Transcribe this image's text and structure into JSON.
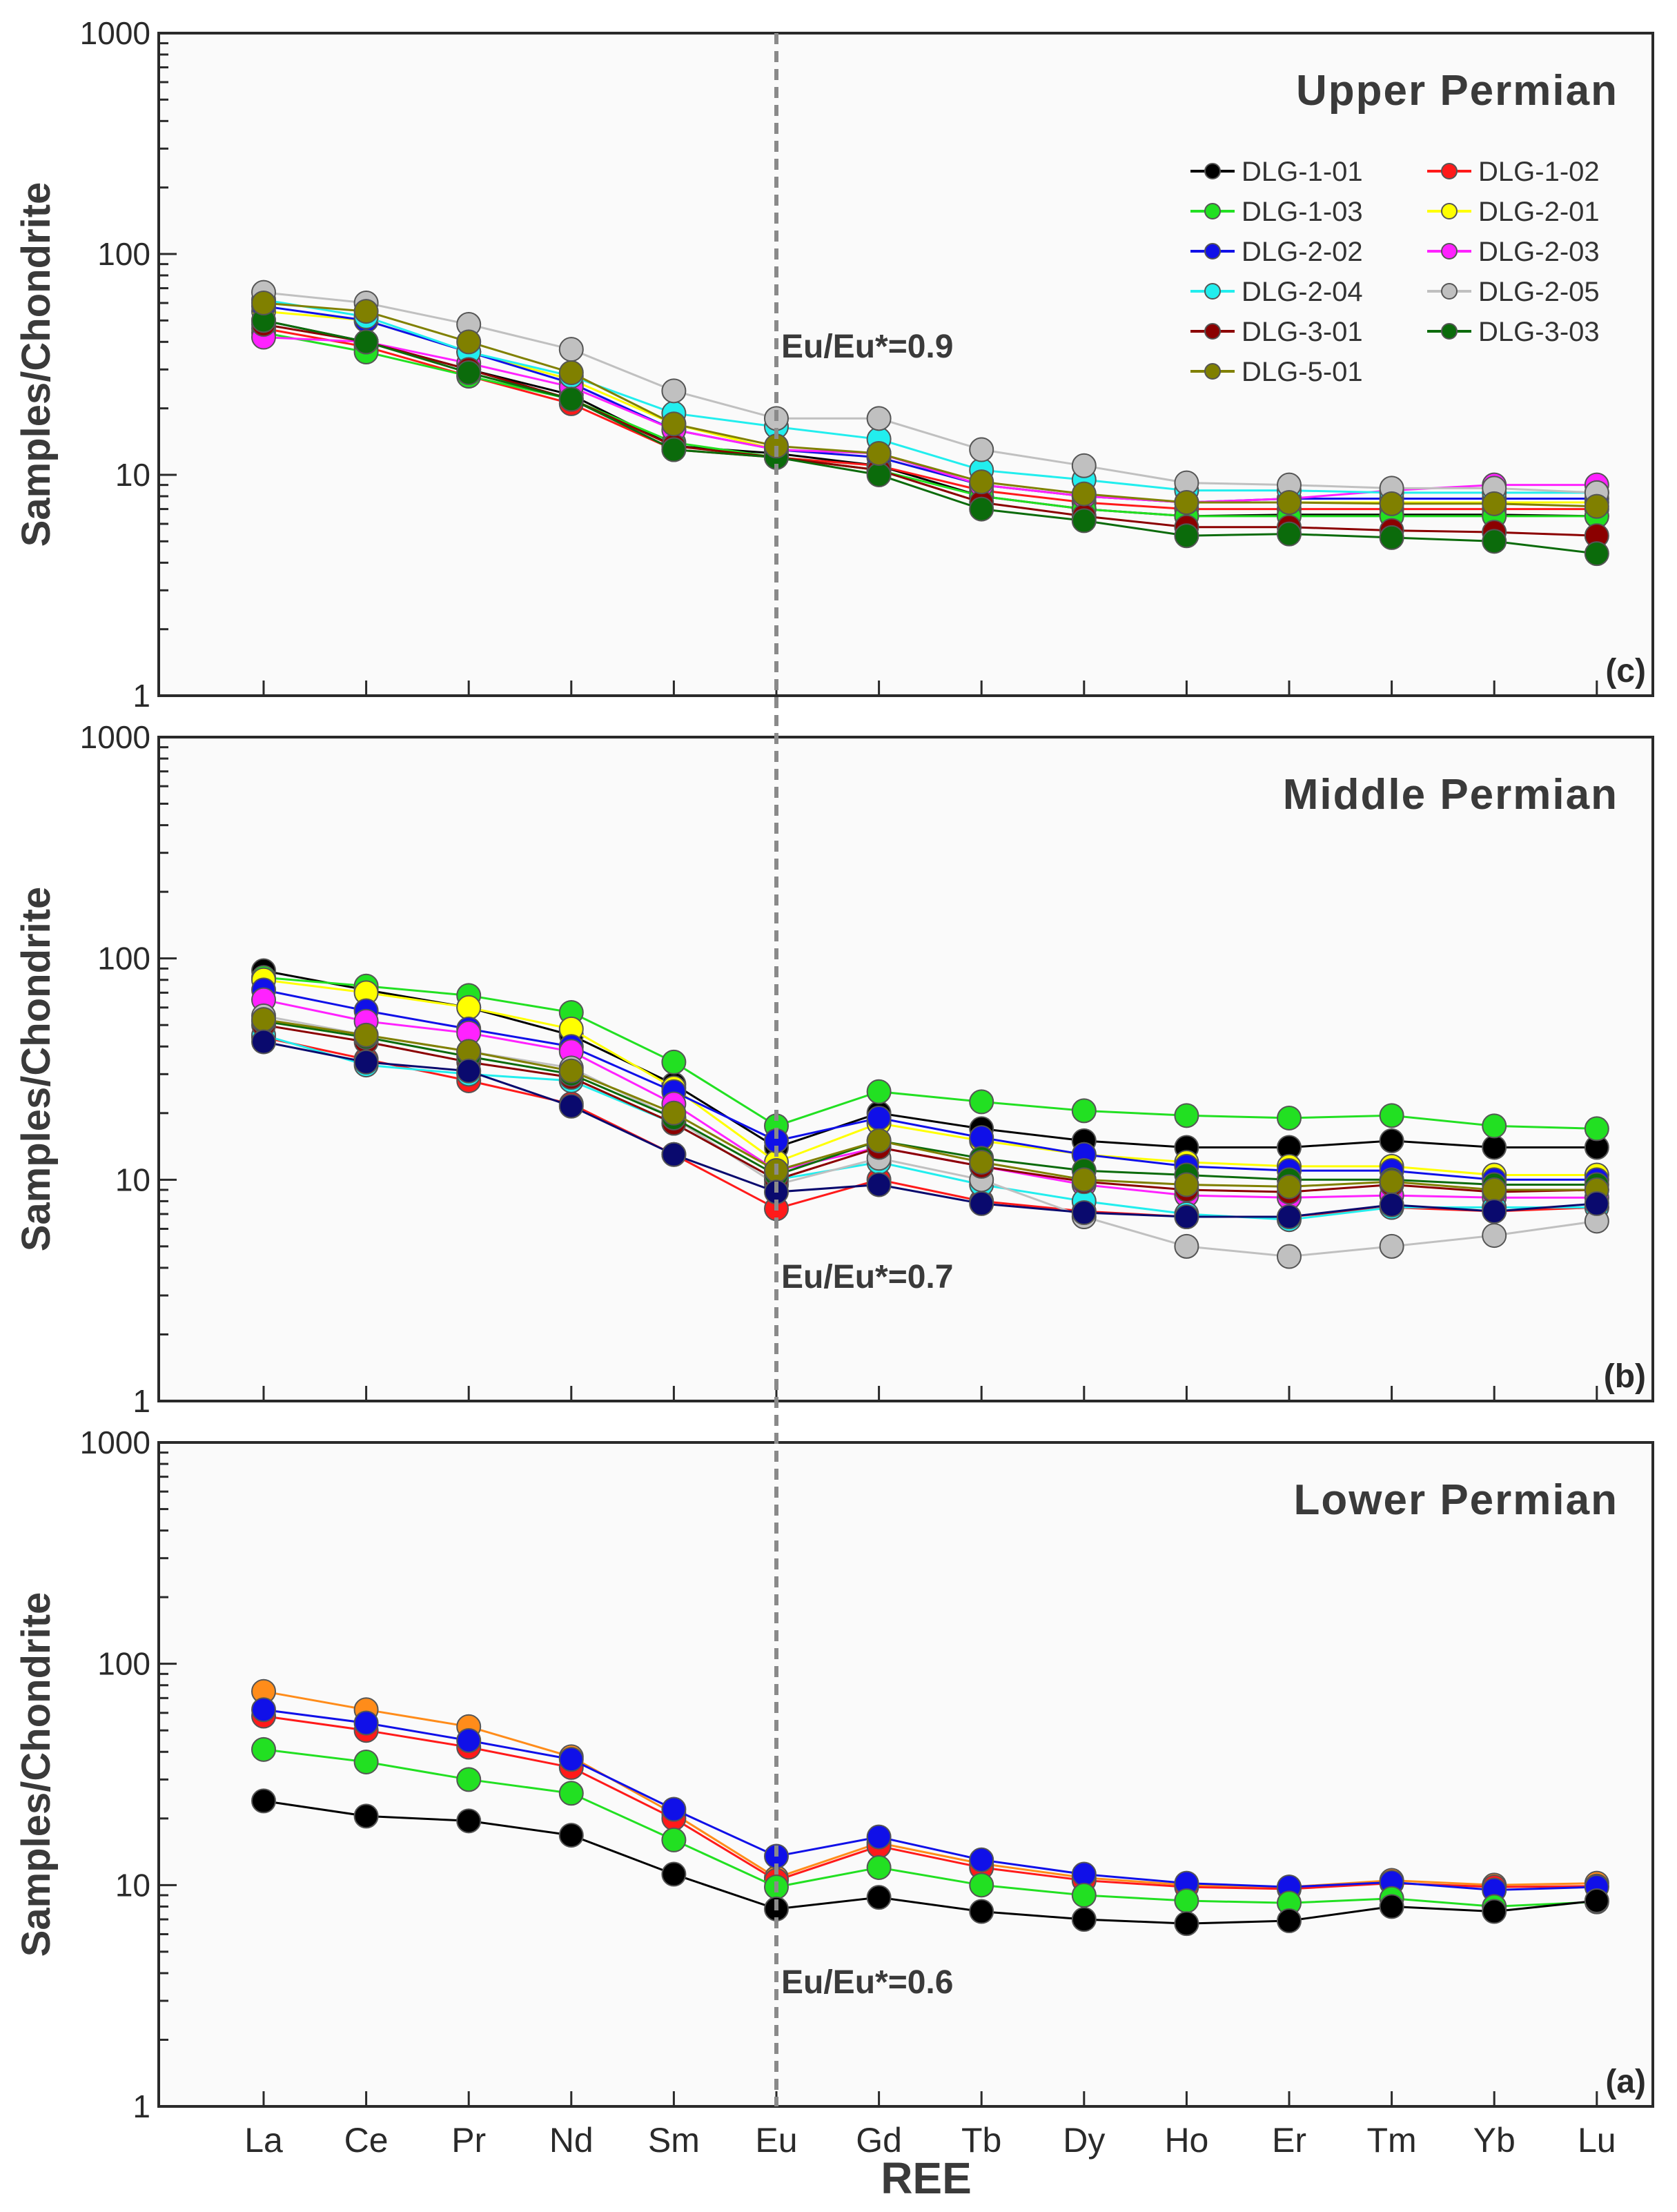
{
  "figure": {
    "xlabel": "REE",
    "ylabel": "Samples/Chondrite",
    "y_tick_labels": [
      "1000",
      "100",
      "10",
      "1"
    ],
    "categories": [
      "La",
      "Ce",
      "Pr",
      "Nd",
      "Sm",
      "Eu",
      "Gd",
      "Tb",
      "Dy",
      "Ho",
      "Er",
      "Tm",
      "Yb",
      "Lu"
    ]
  },
  "legend": [
    {
      "name": "DLG-1-01",
      "color": "#000000"
    },
    {
      "name": "DLG-1-02",
      "color": "#ff1a1a"
    },
    {
      "name": "DLG-1-03",
      "color": "#22e022"
    },
    {
      "name": "DLG-2-01",
      "color": "#ffff00"
    },
    {
      "name": "DLG-2-02",
      "color": "#1010e8"
    },
    {
      "name": "DLG-2-03",
      "color": "#ff22ff"
    },
    {
      "name": "DLG-2-04",
      "color": "#22eeee"
    },
    {
      "name": "DLG-2-05",
      "color": "#c0c0c0"
    },
    {
      "name": "DLG-3-01",
      "color": "#8b0000"
    },
    {
      "name": "DLG-3-03",
      "color": "#0b6b0b"
    },
    {
      "name": "DLG-5-01",
      "color": "#808000"
    }
  ],
  "chart_data": [
    {
      "type": "line",
      "yscale": "log",
      "ylim": [
        1,
        1000
      ],
      "title": "Upper Permian",
      "panel_label": "(c)",
      "annotation": "Eu/Eu*=0.9",
      "xlabel": "REE",
      "ylabel": "Samples/Chondrite",
      "categories": [
        "La",
        "Ce",
        "Pr",
        "Nd",
        "Sm",
        "Eu",
        "Gd",
        "Tb",
        "Dy",
        "Ho",
        "Er",
        "Tm",
        "Yb",
        "Lu"
      ],
      "series": [
        {
          "name": "DLG-1-01",
          "color": "#000000",
          "values": [
            50,
            40,
            30,
            23,
            13.5,
            12.5,
            11,
            8.0,
            7.0,
            6.5,
            6.6,
            6.6,
            6.6,
            6.5
          ]
        },
        {
          "name": "DLG-1-02",
          "color": "#ff1a1a",
          "values": [
            46,
            38,
            28,
            21,
            13,
            12,
            11,
            8.5,
            7.5,
            7.0,
            7.0,
            7.0,
            7.0,
            7.0
          ]
        },
        {
          "name": "DLG-1-03",
          "color": "#22e022",
          "values": [
            44,
            36,
            28,
            22,
            14,
            12,
            10.5,
            8.0,
            7.0,
            6.5,
            6.5,
            6.5,
            6.5,
            6.5
          ]
        },
        {
          "name": "DLG-2-01",
          "color": "#ffff00",
          "values": [
            55,
            50,
            36,
            27,
            17,
            13,
            12,
            9.0,
            8.0,
            7.5,
            7.5,
            7.5,
            7.5,
            7.5
          ]
        },
        {
          "name": "DLG-2-02",
          "color": "#1010e8",
          "values": [
            58,
            50,
            36,
            26,
            16,
            13,
            12,
            9.0,
            8.0,
            7.5,
            7.8,
            7.8,
            7.8,
            7.8
          ]
        },
        {
          "name": "DLG-2-03",
          "color": "#ff22ff",
          "values": [
            42,
            40,
            32,
            25,
            16,
            13,
            12.5,
            9.0,
            8.0,
            7.5,
            7.8,
            8.5,
            9.0,
            9.0
          ]
        },
        {
          "name": "DLG-2-04",
          "color": "#22eeee",
          "values": [
            62,
            52,
            36,
            28,
            19,
            16.5,
            14.5,
            10.5,
            9.5,
            8.5,
            8.5,
            8.3,
            8.3,
            8.3
          ]
        },
        {
          "name": "DLG-2-05",
          "color": "#c0c0c0",
          "values": [
            67,
            60,
            48,
            37,
            24,
            18,
            18,
            13,
            11,
            9.2,
            9.0,
            8.7,
            8.7,
            8.3
          ]
        },
        {
          "name": "DLG-3-01",
          "color": "#8b0000",
          "values": [
            48,
            40,
            30,
            22,
            13.5,
            12,
            10.5,
            7.5,
            6.5,
            5.8,
            5.8,
            5.6,
            5.5,
            5.3
          ]
        },
        {
          "name": "DLG-3-03",
          "color": "#0b6b0b",
          "values": [
            50,
            40,
            29,
            22,
            13,
            12,
            10,
            7.0,
            6.2,
            5.3,
            5.4,
            5.2,
            5.0,
            4.4
          ]
        },
        {
          "name": "DLG-5-01",
          "color": "#808000",
          "values": [
            60,
            55,
            40,
            29,
            17,
            13.5,
            12.5,
            9.3,
            8.2,
            7.5,
            7.5,
            7.4,
            7.4,
            7.2
          ]
        }
      ]
    },
    {
      "type": "line",
      "yscale": "log",
      "ylim": [
        1,
        1000
      ],
      "title": "Middle Permian",
      "panel_label": "(b)",
      "annotation": "Eu/Eu*=0.7",
      "xlabel": "REE",
      "ylabel": "Samples/Chondrite",
      "categories": [
        "La",
        "Ce",
        "Pr",
        "Nd",
        "Sm",
        "Eu",
        "Gd",
        "Tb",
        "Dy",
        "Ho",
        "Er",
        "Tm",
        "Yb",
        "Lu"
      ],
      "series": [
        {
          "name": "DLG-1-01",
          "color": "#000000",
          "values": [
            88,
            72,
            60,
            45,
            27,
            14,
            20,
            17,
            15,
            14,
            14,
            15,
            14,
            14
          ]
        },
        {
          "name": "DLG-1-02",
          "color": "#ff1a1a",
          "values": [
            44,
            35,
            28,
            22,
            13,
            7.4,
            10,
            8.0,
            7.2,
            6.8,
            6.8,
            7.5,
            7.2,
            7.5
          ]
        },
        {
          "name": "DLG-1-03",
          "color": "#22e022",
          "values": [
            82,
            75,
            68,
            57,
            34,
            17.5,
            25,
            22.5,
            20.5,
            19.5,
            19,
            19.5,
            17.5,
            17
          ]
        },
        {
          "name": "DLG-2-01",
          "color": "#ffff00",
          "values": [
            80,
            70,
            60,
            48,
            26,
            12,
            18,
            15,
            13,
            12,
            11.5,
            11.5,
            10.5,
            10.5
          ]
        },
        {
          "name": "DLG-2-02",
          "color": "#1010e8",
          "values": [
            72,
            58,
            48,
            40,
            25,
            15,
            19,
            15.5,
            13,
            11.5,
            11,
            11,
            10,
            10
          ]
        },
        {
          "name": "DLG-2-03",
          "color": "#ff22ff",
          "values": [
            65,
            52,
            46,
            38,
            22,
            11,
            14,
            11.5,
            9.5,
            8.5,
            8.3,
            8.5,
            8.3,
            8.3
          ]
        },
        {
          "name": "DLG-2-04",
          "color": "#22eeee",
          "values": [
            45,
            33,
            30,
            28,
            18,
            10,
            12,
            9.5,
            8.0,
            7.0,
            6.6,
            7.5,
            7.5,
            7.5
          ]
        },
        {
          "name": "DLG-2-05",
          "color": "#c0c0c0",
          "values": [
            55,
            45,
            38,
            32,
            19,
            9.5,
            12.5,
            10,
            6.8,
            5.0,
            4.5,
            5.0,
            5.6,
            6.5
          ]
        },
        {
          "name": "DLG-3-01",
          "color": "#8b0000",
          "values": [
            50,
            42,
            34,
            29,
            18,
            10,
            14,
            11.5,
            9.8,
            9.0,
            8.8,
            9.5,
            8.8,
            9.0
          ]
        },
        {
          "name": "DLG-3-03",
          "color": "#0b6b0b",
          "values": [
            52,
            44,
            36,
            30,
            19,
            10.5,
            15,
            12.5,
            11,
            10.5,
            10,
            10,
            9.5,
            9.5
          ]
        },
        {
          "name": "DLG-5-01",
          "color": "#808000",
          "values": [
            53,
            45,
            38,
            31,
            20,
            11,
            15,
            12,
            10,
            9.5,
            9.3,
            9.8,
            9.0,
            9.0
          ]
        },
        {
          "name": "navy",
          "color": "#0a0a6e",
          "values": [
            42,
            34,
            31,
            21.5,
            13,
            8.8,
            9.5,
            7.8,
            7.1,
            6.8,
            6.8,
            7.7,
            7.2,
            7.8
          ]
        }
      ]
    },
    {
      "type": "line",
      "yscale": "log",
      "ylim": [
        1,
        1000
      ],
      "title": "Lower Permian",
      "panel_label": "(a)",
      "annotation": "Eu/Eu*=0.6",
      "xlabel": "REE",
      "ylabel": "Samples/Chondrite",
      "categories": [
        "La",
        "Ce",
        "Pr",
        "Nd",
        "Sm",
        "Eu",
        "Gd",
        "Tb",
        "Dy",
        "Ho",
        "Er",
        "Tm",
        "Yb",
        "Lu"
      ],
      "series": [
        {
          "name": "orange",
          "color": "#ff8c1a",
          "values": [
            75,
            62,
            52,
            38,
            21,
            10.8,
            15.5,
            12.5,
            10.8,
            10,
            9.8,
            10.5,
            10,
            10.2
          ]
        },
        {
          "name": "red",
          "color": "#ff1a1a",
          "values": [
            58,
            50,
            42,
            34,
            20,
            10.5,
            15,
            12,
            10.5,
            9.8,
            9.6,
            10.2,
            9.8,
            9.9
          ]
        },
        {
          "name": "blue",
          "color": "#1010e8",
          "values": [
            62,
            54,
            45,
            37,
            22,
            13.5,
            16.5,
            13,
            11.2,
            10.2,
            9.8,
            10.3,
            9.5,
            9.8
          ]
        },
        {
          "name": "green",
          "color": "#22e022",
          "values": [
            41,
            36,
            30,
            26,
            16,
            9.8,
            12,
            10,
            9.0,
            8.5,
            8.3,
            8.7,
            8.0,
            8.4
          ]
        },
        {
          "name": "black",
          "color": "#000000",
          "values": [
            24,
            20.5,
            19.5,
            16.8,
            11.2,
            7.8,
            8.8,
            7.6,
            7.0,
            6.7,
            6.9,
            8.0,
            7.6,
            8.5
          ]
        }
      ]
    }
  ]
}
